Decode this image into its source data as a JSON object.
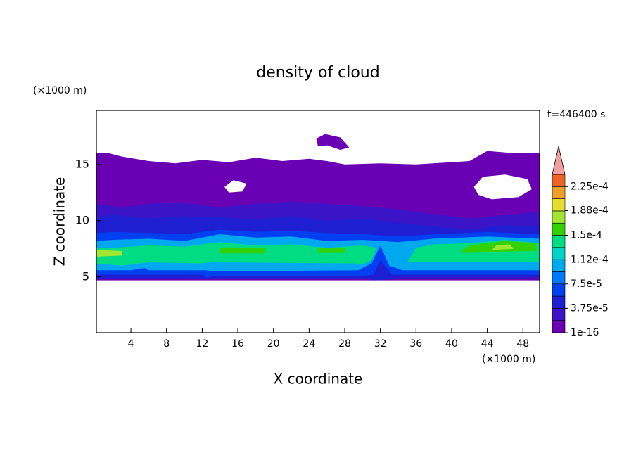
{
  "chart_data": {
    "type": "contour",
    "title": "density of cloud",
    "time_label": "t=446400 s",
    "x_label": "X coordinate",
    "y_label": "Z coordinate",
    "x_unit": "(×1000 m)",
    "y_unit": "(×1000 m)",
    "xlim": [
      0.125,
      49.875
    ],
    "ylim": [
      0.05,
      19.8
    ],
    "xticks": [
      4,
      8,
      12,
      16,
      20,
      24,
      28,
      32,
      36,
      40,
      44,
      48
    ],
    "yticks": [
      5,
      10,
      15
    ],
    "colorbar": {
      "clim": [
        1e-16,
        0.00024375
      ],
      "colors": [
        "#6a00b4",
        "#3c14c8",
        "#1e1ed2",
        "#0040f0",
        "#0078ff",
        "#00a8f0",
        "#00d2c8",
        "#00dc82",
        "#32d200",
        "#a0e632",
        "#e6dc32",
        "#f0a028",
        "#f06428",
        "#f0a0a0"
      ],
      "ticks": [
        1e-16,
        {
          "value": 3.75e-05,
          "label": "3.75e-5"
        },
        {
          "value": 7.5e-05,
          "label": "7.5e-5"
        },
        {
          "value": 0.000112,
          "label": "1.12e-4"
        },
        {
          "value": 0.00015,
          "label": "1.5e-4"
        },
        {
          "value": 0.000188,
          "label": "1.88e-4"
        },
        {
          "value": 0.000225,
          "label": "2.25e-4"
        }
      ]
    }
  }
}
